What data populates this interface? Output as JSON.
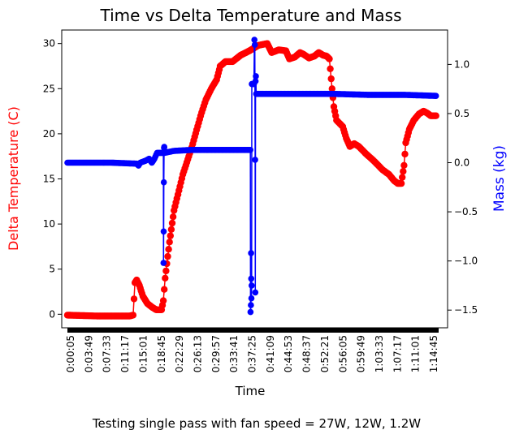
{
  "chart_data": {
    "type": "line",
    "title": "Time vs Delta Temperature and Mass",
    "xlabel": "Time",
    "ylabel_left": "Delta Temperature (C)",
    "ylabel_right": "Mass (kg)",
    "caption": "Testing single pass with fan speed = 27W, 12W, 1.2W",
    "x_tick_labels": [
      "0:00:05",
      "0:03:49",
      "0:07:33",
      "0:11:17",
      "0:15:01",
      "0:18:45",
      "0:22:29",
      "0:26:13",
      "0:29:57",
      "0:33:41",
      "0:37:25",
      "0:41:09",
      "0:44:53",
      "0:48:37",
      "0:52:21",
      "0:56:05",
      "0:59:49",
      "1:03:33",
      "1:07:17",
      "1:11:01",
      "1:14:45"
    ],
    "x_range_seconds": [
      5,
      4485
    ],
    "y_left_range": [
      -1.5,
      31.5
    ],
    "y_left_ticks": [
      "0",
      "5",
      "10",
      "15",
      "20",
      "25",
      "30"
    ],
    "y_right_range": [
      -1.68,
      1.35
    ],
    "y_right_ticks": [
      "−1.5",
      "−1.0",
      "−0.5",
      "0.0",
      "0.5",
      "1.0"
    ],
    "y_right_tick_values": [
      -1.5,
      -1.0,
      -0.5,
      0.0,
      0.5,
      1.0
    ],
    "grid": false,
    "series": [
      {
        "axis": "left",
        "color": "#ff0000",
        "points": [
          [
            0,
            -0.1
          ],
          [
            360,
            -0.2
          ],
          [
            700,
            -0.2
          ],
          [
            740,
            -0.1
          ],
          [
            760,
            3.5
          ],
          [
            780,
            3.8
          ],
          [
            810,
            3.2
          ],
          [
            850,
            2.0
          ],
          [
            900,
            1.2
          ],
          [
            950,
            0.8
          ],
          [
            1000,
            0.5
          ],
          [
            1060,
            0.5
          ],
          [
            1080,
            1.5
          ],
          [
            1100,
            4.0
          ],
          [
            1150,
            8.0
          ],
          [
            1200,
            11.5
          ],
          [
            1300,
            15.5
          ],
          [
            1400,
            18.5
          ],
          [
            1500,
            22.0
          ],
          [
            1560,
            23.8
          ],
          [
            1620,
            25.0
          ],
          [
            1680,
            26.0
          ],
          [
            1720,
            27.5
          ],
          [
            1780,
            28.0
          ],
          [
            1860,
            28.0
          ],
          [
            1950,
            28.7
          ],
          [
            2050,
            29.2
          ],
          [
            2150,
            29.8
          ],
          [
            2250,
            30.0
          ],
          [
            2300,
            29.0
          ],
          [
            2380,
            29.3
          ],
          [
            2460,
            29.2
          ],
          [
            2500,
            28.3
          ],
          [
            2560,
            28.5
          ],
          [
            2620,
            29.0
          ],
          [
            2660,
            28.8
          ],
          [
            2720,
            28.4
          ],
          [
            2780,
            28.6
          ],
          [
            2830,
            29.0
          ],
          [
            2880,
            28.7
          ],
          [
            2920,
            28.6
          ],
          [
            2950,
            28.3
          ],
          [
            2980,
            25.0
          ],
          [
            3000,
            23.0
          ],
          [
            3030,
            21.5
          ],
          [
            3100,
            20.8
          ],
          [
            3140,
            19.5
          ],
          [
            3180,
            18.6
          ],
          [
            3230,
            18.9
          ],
          [
            3280,
            18.6
          ],
          [
            3360,
            17.8
          ],
          [
            3450,
            17.0
          ],
          [
            3500,
            16.5
          ],
          [
            3550,
            16.0
          ],
          [
            3620,
            15.5
          ],
          [
            3680,
            14.8
          ],
          [
            3720,
            14.5
          ],
          [
            3760,
            14.5
          ],
          [
            3790,
            16.5
          ],
          [
            3810,
            19.0
          ],
          [
            3850,
            20.5
          ],
          [
            3900,
            21.5
          ],
          [
            3960,
            22.2
          ],
          [
            4010,
            22.5
          ],
          [
            4050,
            22.3
          ],
          [
            4090,
            22.0
          ],
          [
            4150,
            22.0
          ]
        ]
      },
      {
        "axis": "right",
        "color": "#0000ff",
        "points": [
          [
            0,
            0.0
          ],
          [
            500,
            0.0
          ],
          [
            780,
            -0.01
          ],
          [
            800,
            -0.03
          ],
          [
            820,
            0.0
          ],
          [
            880,
            0.02
          ],
          [
            920,
            0.04
          ],
          [
            950,
            0.0
          ],
          [
            980,
            0.04
          ],
          [
            1000,
            0.08
          ],
          [
            1010,
            0.1
          ],
          [
            1050,
            0.1
          ],
          [
            1080,
            0.1
          ],
          [
            1082,
            -1.02
          ],
          [
            1084,
            -0.7
          ],
          [
            1086,
            -0.2
          ],
          [
            1088,
            0.15
          ],
          [
            1090,
            0.16
          ],
          [
            1092,
            0.1
          ],
          [
            1200,
            0.12
          ],
          [
            1400,
            0.13
          ],
          [
            1600,
            0.13
          ],
          [
            1800,
            0.13
          ],
          [
            2000,
            0.13
          ],
          [
            2060,
            0.13
          ],
          [
            2062,
            -1.52
          ],
          [
            2066,
            -1.45
          ],
          [
            2068,
            -0.92
          ],
          [
            2070,
            -1.18
          ],
          [
            2072,
            -1.38
          ],
          [
            2074,
            -1.25
          ],
          [
            2076,
            0.8
          ],
          [
            2080,
            0.8
          ],
          [
            2100,
            0.8
          ],
          [
            2106,
            1.25
          ],
          [
            2110,
            1.2
          ],
          [
            2114,
            0.03
          ],
          [
            2116,
            -1.32
          ],
          [
            2118,
            0.83
          ],
          [
            2122,
            0.88
          ],
          [
            2126,
            0.7
          ],
          [
            2200,
            0.7
          ],
          [
            2600,
            0.7
          ],
          [
            3000,
            0.7
          ],
          [
            3400,
            0.69
          ],
          [
            3800,
            0.69
          ],
          [
            4150,
            0.68
          ]
        ]
      }
    ]
  }
}
